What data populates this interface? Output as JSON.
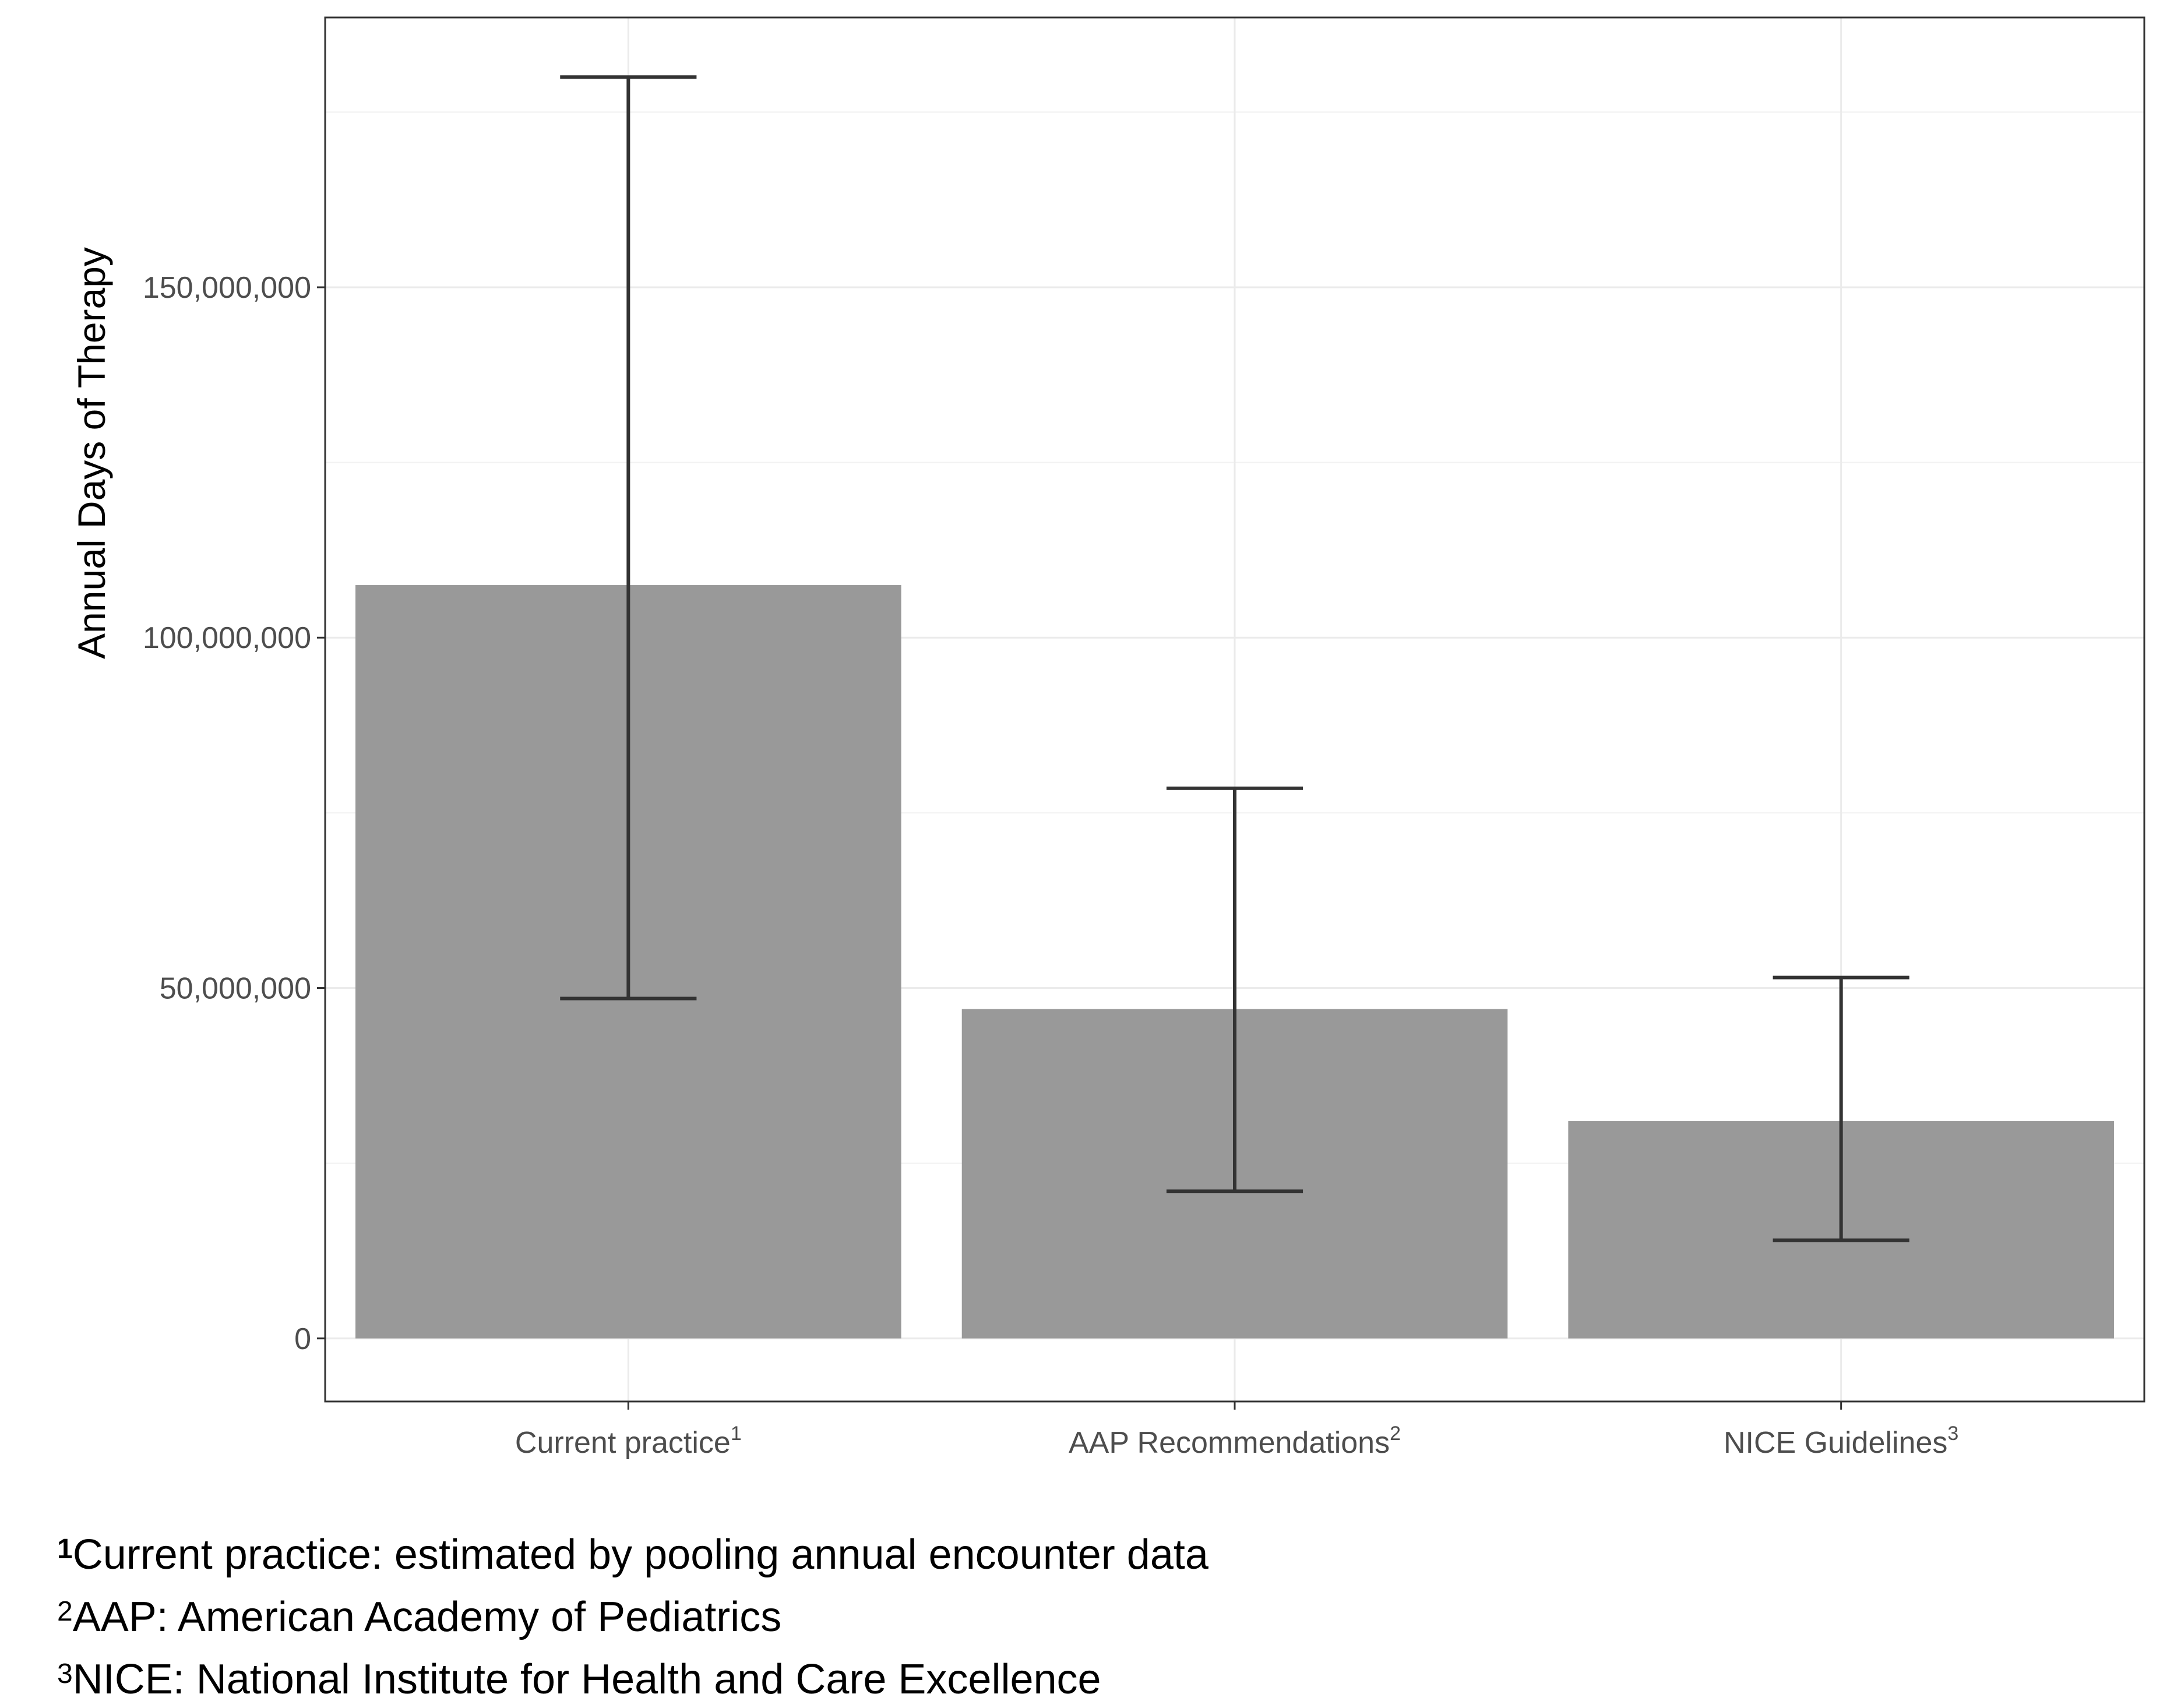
{
  "chart_data": {
    "type": "bar",
    "categories": [
      {
        "label": "Current practice",
        "sup": "1"
      },
      {
        "label": "AAP Recommendations",
        "sup": "2"
      },
      {
        "label": "NICE Guidelines",
        "sup": "3"
      }
    ],
    "values": [
      107500000,
      47000000,
      31000000
    ],
    "error_low": [
      48500000,
      21000000,
      14000000
    ],
    "error_high": [
      180000000,
      78500000,
      51500000
    ],
    "ylabel": "Annual Days of Therapy",
    "xlabel": "",
    "ylim": [
      -9000000,
      188500000
    ],
    "y_ticks": [
      0,
      50000000,
      100000000,
      150000000
    ],
    "y_tick_labels": [
      "0",
      "50,000,000",
      "100,000,000",
      "150,000,000"
    ],
    "grid": true,
    "bar_color": "#999999",
    "errorbar_color": "#333333"
  },
  "footnotes": [
    {
      "mark": "1",
      "text": "Current practice: estimated by pooling annual encounter data"
    },
    {
      "mark": "2",
      "text": "AAP: American Academy of Pediatrics"
    },
    {
      "mark": "3",
      "text": "NICE: National Institute for Health and Care Excellence"
    }
  ]
}
